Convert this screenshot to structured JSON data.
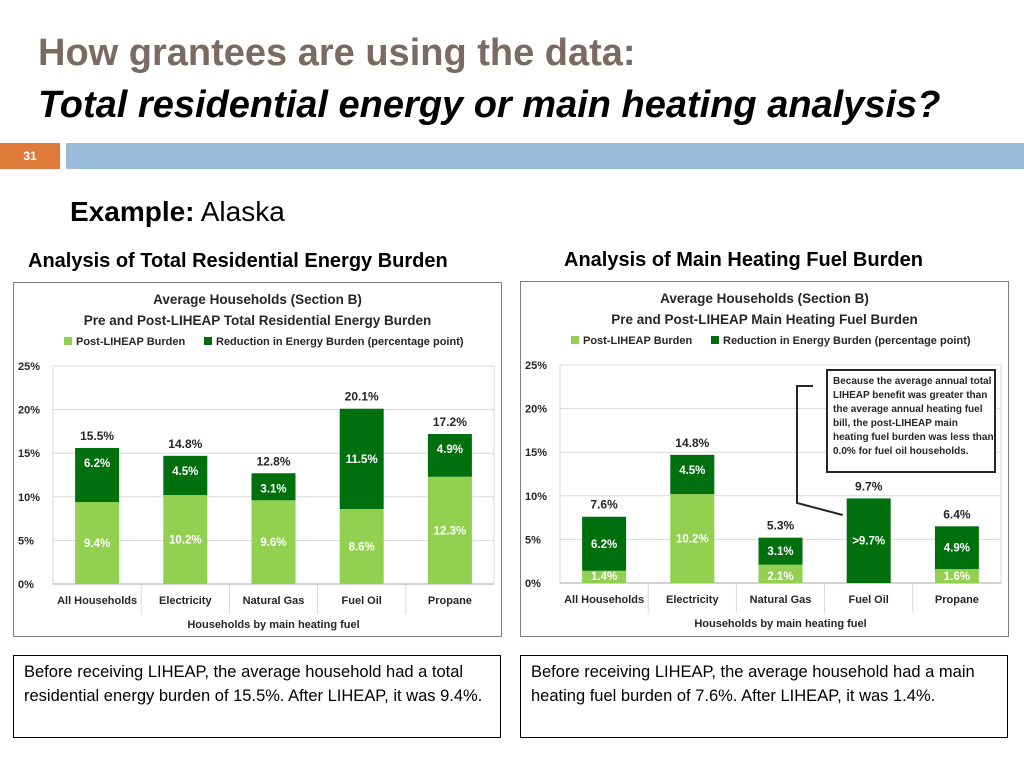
{
  "slide": {
    "title_line1": "How grantees are using the data:",
    "title_line2": "Total residential energy or main heating analysis?",
    "slide_number": "31",
    "example_label": "Example:",
    "example_value": "Alaska"
  },
  "captions": {
    "left": "Analysis of Total Residential Energy Burden",
    "right": "Analysis of Main Heating Fuel Burden"
  },
  "notes": {
    "left": "Before receiving LIHEAP, the average household had a total residential energy burden of 15.5%.  After LIHEAP, it was 9.4%.",
    "right": "Before receiving LIHEAP, the average household had a main heating fuel burden of 7.6%.  After LIHEAP, it was 1.4%."
  },
  "colors": {
    "post": "#92d050",
    "reduction": "#00700f",
    "title_gray": "#7a6a62",
    "accent_orange": "#e07a3a",
    "bar_blue": "#9bbcd8"
  },
  "chart_data": [
    {
      "type": "bar",
      "stacked": true,
      "title": "Average Households (Section B)",
      "subtitle": "Pre and Post-LIHEAP Total Residential Energy Burden",
      "legend_position": "top",
      "xlabel": "Households by main heating fuel",
      "ylim": [
        0,
        25
      ],
      "yticks": [
        0,
        5,
        10,
        15,
        20,
        25
      ],
      "ytick_labels": [
        "0%",
        "5%",
        "10%",
        "15%",
        "20%",
        "25%"
      ],
      "grid": true,
      "categories": [
        "All Households",
        "Electricity",
        "Natural Gas",
        "Fuel Oil",
        "Propane"
      ],
      "series": [
        {
          "name": "Post-LIHEAP Burden",
          "values": [
            9.4,
            10.2,
            9.6,
            8.6,
            12.3
          ],
          "labels": [
            "9.4%",
            "10.2%",
            "9.6%",
            "8.6%",
            "12.3%"
          ]
        },
        {
          "name": "Reduction in Energy Burden (percentage point)",
          "values": [
            6.2,
            4.5,
            3.1,
            11.5,
            4.9
          ],
          "labels": [
            "6.2%",
            "4.5%",
            "3.1%",
            "11.5%",
            "4.9%"
          ]
        }
      ],
      "total_labels": [
        "15.5%",
        "14.8%",
        "12.8%",
        "20.1%",
        "17.2%"
      ],
      "annotation": ""
    },
    {
      "type": "bar",
      "stacked": true,
      "title": "Average Households (Section B)",
      "subtitle": "Pre and Post-LIHEAP Main Heating Fuel Burden",
      "legend_position": "top",
      "xlabel": "Households by main heating fuel",
      "ylim": [
        0,
        25
      ],
      "yticks": [
        0,
        5,
        10,
        15,
        20,
        25
      ],
      "ytick_labels": [
        "0%",
        "5%",
        "10%",
        "15%",
        "20%",
        "25%"
      ],
      "grid": true,
      "categories": [
        "All Households",
        "Electricity",
        "Natural Gas",
        "Fuel Oil",
        "Propane"
      ],
      "series": [
        {
          "name": "Post-LIHEAP Burden",
          "values": [
            1.4,
            10.2,
            2.1,
            0,
            1.6
          ],
          "labels": [
            "1.4%",
            "10.2%",
            "2.1%",
            "",
            "1.6%"
          ]
        },
        {
          "name": "Reduction in Energy Burden (percentage point)",
          "values": [
            6.2,
            4.5,
            3.1,
            9.7,
            4.9
          ],
          "labels": [
            "6.2%",
            "4.5%",
            "3.1%",
            ">9.7%",
            "4.9%"
          ]
        }
      ],
      "total_labels": [
        "7.6%",
        "14.8%",
        "5.3%",
        "9.7%",
        "6.4%"
      ],
      "annotation": "Because the average annual total LIHEAP benefit was greater than the average annual heating fuel bill, the post-LIHEAP main heating fuel burden was less than 0.0% for fuel oil households."
    }
  ]
}
